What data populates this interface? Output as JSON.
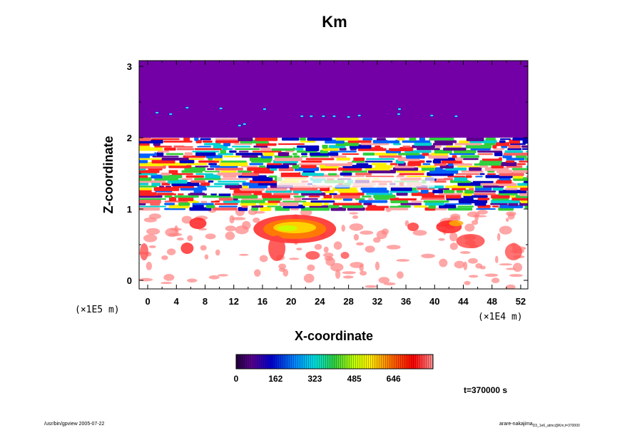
{
  "chart_data": {
    "type": "heatmap",
    "title": "Km",
    "xlabel": "X-coordinate",
    "ylabel": "Z-coordinate",
    "x_unit_label": "(×1E4 m)",
    "y_unit_label": "(×1E5 m)",
    "x_ticks": [
      "0",
      "4",
      "8",
      "12",
      "16",
      "20",
      "24",
      "28",
      "32",
      "36",
      "40",
      "44",
      "48",
      "52"
    ],
    "y_ticks": [
      "0",
      "1",
      "2",
      "3"
    ],
    "xlim": [
      -1.2,
      53
    ],
    "ylim": [
      -0.12,
      3.08
    ],
    "colorbar": {
      "ticks": [
        "0",
        "162",
        "323",
        "485",
        "646"
      ],
      "max_value": 808,
      "colormap": "purple-blue-cyan-green-yellow-red-pink"
    },
    "field_regions": [
      {
        "name": "upper-layer",
        "z_range": [
          2.0,
          3.08
        ],
        "level": "lowest"
      },
      {
        "name": "turbulent-band",
        "z_range": [
          1.0,
          2.0
        ],
        "level": "mixed"
      },
      {
        "name": "lower-layer",
        "z_range": [
          -0.12,
          1.0
        ],
        "level": "mostly above range with red patches"
      }
    ],
    "colors": {
      "low": "#7300a6",
      "mid": "#33cc33",
      "high": "#ff2020",
      "saturated": "#ffffff"
    }
  },
  "time_label": "t=370000 s",
  "footer": {
    "left": "/usr/bin/gpview 2005-07-22",
    "right_main": "arare-nakajima",
    "right_sub": "D3_1e6_atmc@Km,t=370000"
  }
}
